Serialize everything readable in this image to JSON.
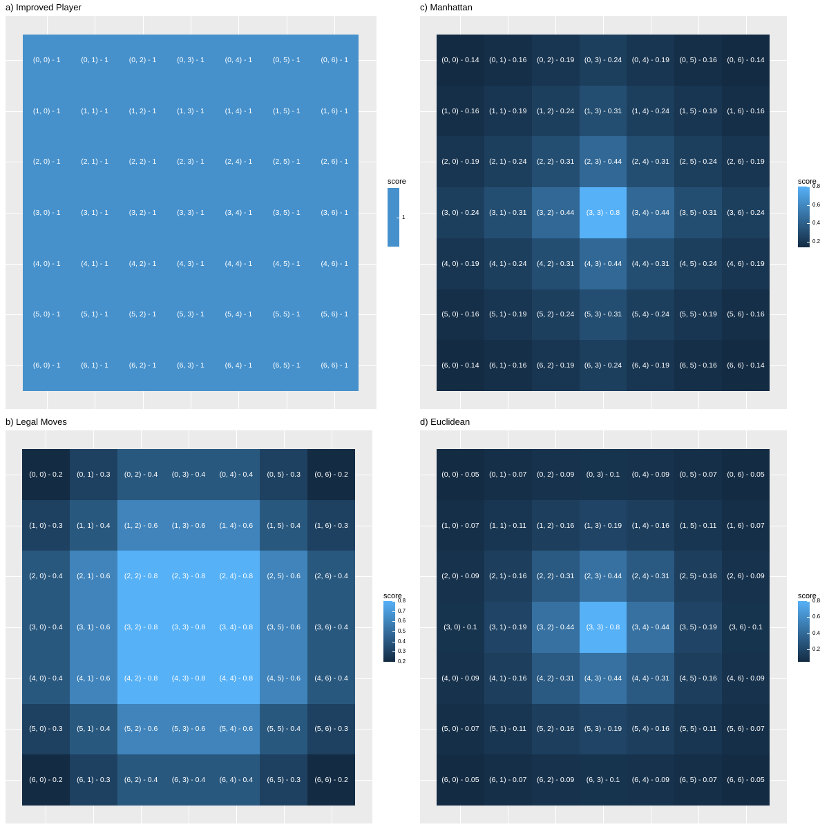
{
  "colors": {
    "low": "#132B43",
    "high": "#56B1F7",
    "panel_bg": "#EBEBEB",
    "grid": "#FFFFFF",
    "label": "#FFFFFF"
  },
  "chart_data": [
    {
      "id": "a",
      "type": "heatmap",
      "title": "a) Improved Player",
      "legend_title": "score",
      "legend_labels": [
        "1"
      ],
      "legend_values": [
        1
      ],
      "legend_mode": "single",
      "rows": 7,
      "cols": 7,
      "values": [
        [
          1,
          1,
          1,
          1,
          1,
          1,
          1
        ],
        [
          1,
          1,
          1,
          1,
          1,
          1,
          1
        ],
        [
          1,
          1,
          1,
          1,
          1,
          1,
          1
        ],
        [
          1,
          1,
          1,
          1,
          1,
          1,
          1
        ],
        [
          1,
          1,
          1,
          1,
          1,
          1,
          1
        ],
        [
          1,
          1,
          1,
          1,
          1,
          1,
          1
        ],
        [
          1,
          1,
          1,
          1,
          1,
          1,
          1
        ]
      ],
      "labels": [
        [
          "(0, 0) - 1",
          "(0, 1) - 1",
          "(0, 2) - 1",
          "(0, 3) - 1",
          "(0, 4) - 1",
          "(0, 5) - 1",
          "(0, 6) - 1"
        ],
        [
          "(1, 0) - 1",
          "(1, 1) - 1",
          "(1, 2) - 1",
          "(1, 3) - 1",
          "(1, 4) - 1",
          "(1, 5) - 1",
          "(1, 6) - 1"
        ],
        [
          "(2, 0) - 1",
          "(2, 1) - 1",
          "(2, 2) - 1",
          "(2, 3) - 1",
          "(2, 4) - 1",
          "(2, 5) - 1",
          "(2, 6) - 1"
        ],
        [
          "(3, 0) - 1",
          "(3, 1) - 1",
          "(3, 2) - 1",
          "(3, 3) - 1",
          "(3, 4) - 1",
          "(3, 5) - 1",
          "(3, 6) - 1"
        ],
        [
          "(4, 0) - 1",
          "(4, 1) - 1",
          "(4, 2) - 1",
          "(4, 3) - 1",
          "(4, 4) - 1",
          "(4, 5) - 1",
          "(4, 6) - 1"
        ],
        [
          "(5, 0) - 1",
          "(5, 1) - 1",
          "(5, 2) - 1",
          "(5, 3) - 1",
          "(5, 4) - 1",
          "(5, 5) - 1",
          "(5, 6) - 1"
        ],
        [
          "(6, 0) - 1",
          "(6, 1) - 1",
          "(6, 2) - 1",
          "(6, 3) - 1",
          "(6, 4) - 1",
          "(6, 5) - 1",
          "(6, 6) - 1"
        ]
      ],
      "color_range": [
        0.05,
        1.3
      ]
    },
    {
      "id": "b",
      "type": "heatmap",
      "title": "b) Legal Moves",
      "legend_title": "score",
      "legend_labels": [
        "0.8",
        "0.7",
        "0.6",
        "0.5",
        "0.4",
        "0.3",
        "0.2"
      ],
      "legend_values": [
        0.8,
        0.7,
        0.6,
        0.5,
        0.4,
        0.3,
        0.2
      ],
      "legend_mode": "range",
      "rows": 7,
      "cols": 7,
      "values": [
        [
          0.2,
          0.3,
          0.4,
          0.4,
          0.4,
          0.3,
          0.2
        ],
        [
          0.3,
          0.4,
          0.6,
          0.6,
          0.6,
          0.4,
          0.3
        ],
        [
          0.4,
          0.6,
          0.8,
          0.8,
          0.8,
          0.6,
          0.4
        ],
        [
          0.4,
          0.6,
          0.8,
          0.8,
          0.8,
          0.6,
          0.4
        ],
        [
          0.4,
          0.6,
          0.8,
          0.8,
          0.8,
          0.6,
          0.4
        ],
        [
          0.3,
          0.4,
          0.6,
          0.6,
          0.6,
          0.4,
          0.3
        ],
        [
          0.2,
          0.3,
          0.4,
          0.4,
          0.4,
          0.3,
          0.2
        ]
      ],
      "labels": [
        [
          "(0, 0) - 0.2",
          "(0, 1) - 0.3",
          "(0, 2) - 0.4",
          "(0, 3) - 0.4",
          "(0, 4) - 0.4",
          "(0, 5) - 0.3",
          "(0, 6) - 0.2"
        ],
        [
          "(1, 0) - 0.3",
          "(1, 1) - 0.4",
          "(1, 2) - 0.6",
          "(1, 3) - 0.6",
          "(1, 4) - 0.6",
          "(1, 5) - 0.4",
          "(1, 6) - 0.3"
        ],
        [
          "(2, 0) - 0.4",
          "(2, 1) - 0.6",
          "(2, 2) - 0.8",
          "(2, 3) - 0.8",
          "(2, 4) - 0.8",
          "(2, 5) - 0.6",
          "(2, 6) - 0.4"
        ],
        [
          "(3, 0) - 0.4",
          "(3, 1) - 0.6",
          "(3, 2) - 0.8",
          "(3, 3) - 0.8",
          "(3, 4) - 0.8",
          "(3, 5) - 0.6",
          "(3, 6) - 0.4"
        ],
        [
          "(4, 0) - 0.4",
          "(4, 1) - 0.6",
          "(4, 2) - 0.8",
          "(4, 3) - 0.8",
          "(4, 4) - 0.8",
          "(4, 5) - 0.6",
          "(4, 6) - 0.4"
        ],
        [
          "(5, 0) - 0.3",
          "(5, 1) - 0.4",
          "(5, 2) - 0.6",
          "(5, 3) - 0.6",
          "(5, 4) - 0.6",
          "(5, 5) - 0.4",
          "(5, 6) - 0.3"
        ],
        [
          "(6, 0) - 0.2",
          "(6, 1) - 0.3",
          "(6, 2) - 0.4",
          "(6, 3) - 0.4",
          "(6, 4) - 0.4",
          "(6, 5) - 0.3",
          "(6, 6) - 0.2"
        ]
      ],
      "color_range": [
        0.2,
        0.8
      ]
    },
    {
      "id": "c",
      "type": "heatmap",
      "title": "c) Manhattan",
      "legend_title": "score",
      "legend_labels": [
        "0.8",
        "0.6",
        "0.4",
        "0.2"
      ],
      "legend_values": [
        0.8,
        0.6,
        0.4,
        0.2
      ],
      "legend_mode": "range",
      "rows": 7,
      "cols": 7,
      "values": [
        [
          0.14,
          0.16,
          0.19,
          0.24,
          0.19,
          0.16,
          0.14
        ],
        [
          0.16,
          0.19,
          0.24,
          0.31,
          0.24,
          0.19,
          0.16
        ],
        [
          0.19,
          0.24,
          0.31,
          0.44,
          0.31,
          0.24,
          0.19
        ],
        [
          0.24,
          0.31,
          0.44,
          0.8,
          0.44,
          0.31,
          0.24
        ],
        [
          0.19,
          0.24,
          0.31,
          0.44,
          0.31,
          0.24,
          0.19
        ],
        [
          0.16,
          0.19,
          0.24,
          0.31,
          0.24,
          0.19,
          0.16
        ],
        [
          0.14,
          0.16,
          0.19,
          0.24,
          0.19,
          0.16,
          0.14
        ]
      ],
      "labels": [
        [
          "(0, 0) - 0.14",
          "(0, 1) - 0.16",
          "(0, 2) - 0.19",
          "(0, 3) - 0.24",
          "(0, 4) - 0.19",
          "(0, 5) - 0.16",
          "(0, 6) - 0.14"
        ],
        [
          "(1, 0) - 0.16",
          "(1, 1) - 0.19",
          "(1, 2) - 0.24",
          "(1, 3) - 0.31",
          "(1, 4) - 0.24",
          "(1, 5) - 0.19",
          "(1, 6) - 0.16"
        ],
        [
          "(2, 0) - 0.19",
          "(2, 1) - 0.24",
          "(2, 2) - 0.31",
          "(2, 3) - 0.44",
          "(2, 4) - 0.31",
          "(2, 5) - 0.24",
          "(2, 6) - 0.19"
        ],
        [
          "(3, 0) - 0.24",
          "(3, 1) - 0.31",
          "(3, 2) - 0.44",
          "(3, 3) - 0.8",
          "(3, 4) - 0.44",
          "(3, 5) - 0.31",
          "(3, 6) - 0.24"
        ],
        [
          "(4, 0) - 0.19",
          "(4, 1) - 0.24",
          "(4, 2) - 0.31",
          "(4, 3) - 0.44",
          "(4, 4) - 0.31",
          "(4, 5) - 0.24",
          "(4, 6) - 0.19"
        ],
        [
          "(5, 0) - 0.16",
          "(5, 1) - 0.19",
          "(5, 2) - 0.24",
          "(5, 3) - 0.31",
          "(5, 4) - 0.24",
          "(5, 5) - 0.19",
          "(5, 6) - 0.16"
        ],
        [
          "(6, 0) - 0.14",
          "(6, 1) - 0.16",
          "(6, 2) - 0.19",
          "(6, 3) - 0.24",
          "(6, 4) - 0.19",
          "(6, 5) - 0.16",
          "(6, 6) - 0.14"
        ]
      ],
      "color_range": [
        0.14,
        0.8
      ]
    },
    {
      "id": "d",
      "type": "heatmap",
      "title": "d) Euclidean",
      "legend_title": "score",
      "legend_labels": [
        "0.8",
        "0.6",
        "0.4",
        "0.2"
      ],
      "legend_values": [
        0.8,
        0.6,
        0.4,
        0.2
      ],
      "legend_mode": "range",
      "rows": 7,
      "cols": 7,
      "values": [
        [
          0.05,
          0.07,
          0.09,
          0.1,
          0.09,
          0.07,
          0.05
        ],
        [
          0.07,
          0.11,
          0.16,
          0.19,
          0.16,
          0.11,
          0.07
        ],
        [
          0.09,
          0.16,
          0.31,
          0.44,
          0.31,
          0.16,
          0.09
        ],
        [
          0.1,
          0.19,
          0.44,
          0.8,
          0.44,
          0.19,
          0.1
        ],
        [
          0.09,
          0.16,
          0.31,
          0.44,
          0.31,
          0.16,
          0.09
        ],
        [
          0.07,
          0.11,
          0.16,
          0.19,
          0.16,
          0.11,
          0.07
        ],
        [
          0.05,
          0.07,
          0.09,
          0.1,
          0.09,
          0.07,
          0.05
        ]
      ],
      "labels": [
        [
          "(0, 0) - 0.05",
          "(0, 1) - 0.07",
          "(0, 2) - 0.09",
          "(0, 3) - 0.1",
          "(0, 4) - 0.09",
          "(0, 5) - 0.07",
          "(0, 6) - 0.05"
        ],
        [
          "(1, 0) - 0.07",
          "(1, 1) - 0.11",
          "(1, 2) - 0.16",
          "(1, 3) - 0.19",
          "(1, 4) - 0.16",
          "(1, 5) - 0.11",
          "(1, 6) - 0.07"
        ],
        [
          "(2, 0) - 0.09",
          "(2, 1) - 0.16",
          "(2, 2) - 0.31",
          "(2, 3) - 0.44",
          "(2, 4) - 0.31",
          "(2, 5) - 0.16",
          "(2, 6) - 0.09"
        ],
        [
          "(3, 0) - 0.1",
          "(3, 1) - 0.19",
          "(3, 2) - 0.44",
          "(3, 3) - 0.8",
          "(3, 4) - 0.44",
          "(3, 5) - 0.19",
          "(3, 6) - 0.1"
        ],
        [
          "(4, 0) - 0.09",
          "(4, 1) - 0.16",
          "(4, 2) - 0.31",
          "(4, 3) - 0.44",
          "(4, 4) - 0.31",
          "(4, 5) - 0.16",
          "(4, 6) - 0.09"
        ],
        [
          "(5, 0) - 0.07",
          "(5, 1) - 0.11",
          "(5, 2) - 0.16",
          "(5, 3) - 0.19",
          "(5, 4) - 0.16",
          "(5, 5) - 0.11",
          "(5, 6) - 0.07"
        ],
        [
          "(6, 0) - 0.05",
          "(6, 1) - 0.07",
          "(6, 2) - 0.09",
          "(6, 3) - 0.1",
          "(6, 4) - 0.09",
          "(6, 5) - 0.07",
          "(6, 6) - 0.05"
        ]
      ],
      "color_range": [
        0.05,
        0.8
      ]
    }
  ]
}
